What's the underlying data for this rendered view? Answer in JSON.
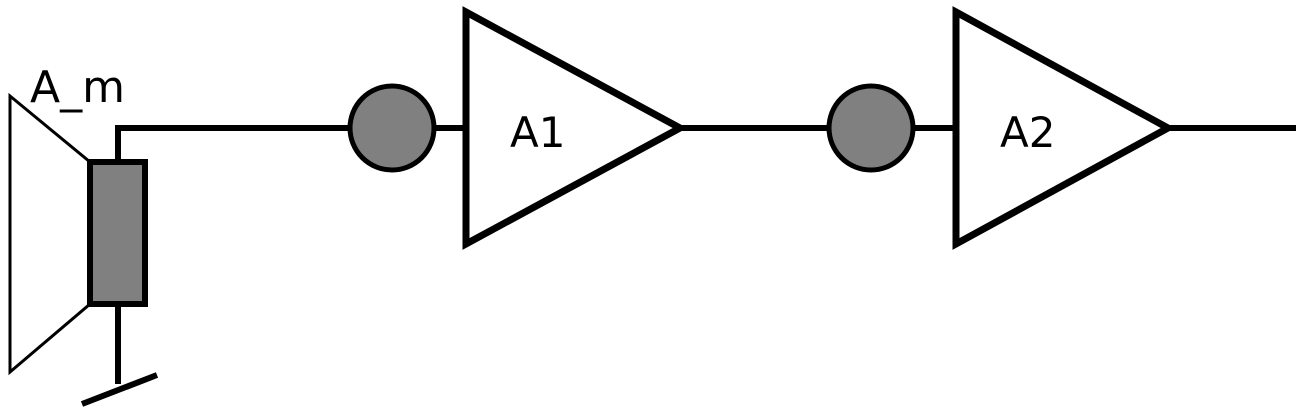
{
  "diagram": {
    "mic_label": "A_m",
    "amplifier_1_label": "A1",
    "amplifier_2_label": "A2"
  },
  "colors": {
    "stroke": "#000000",
    "fill_gray": "#808080",
    "background": "#ffffff"
  }
}
